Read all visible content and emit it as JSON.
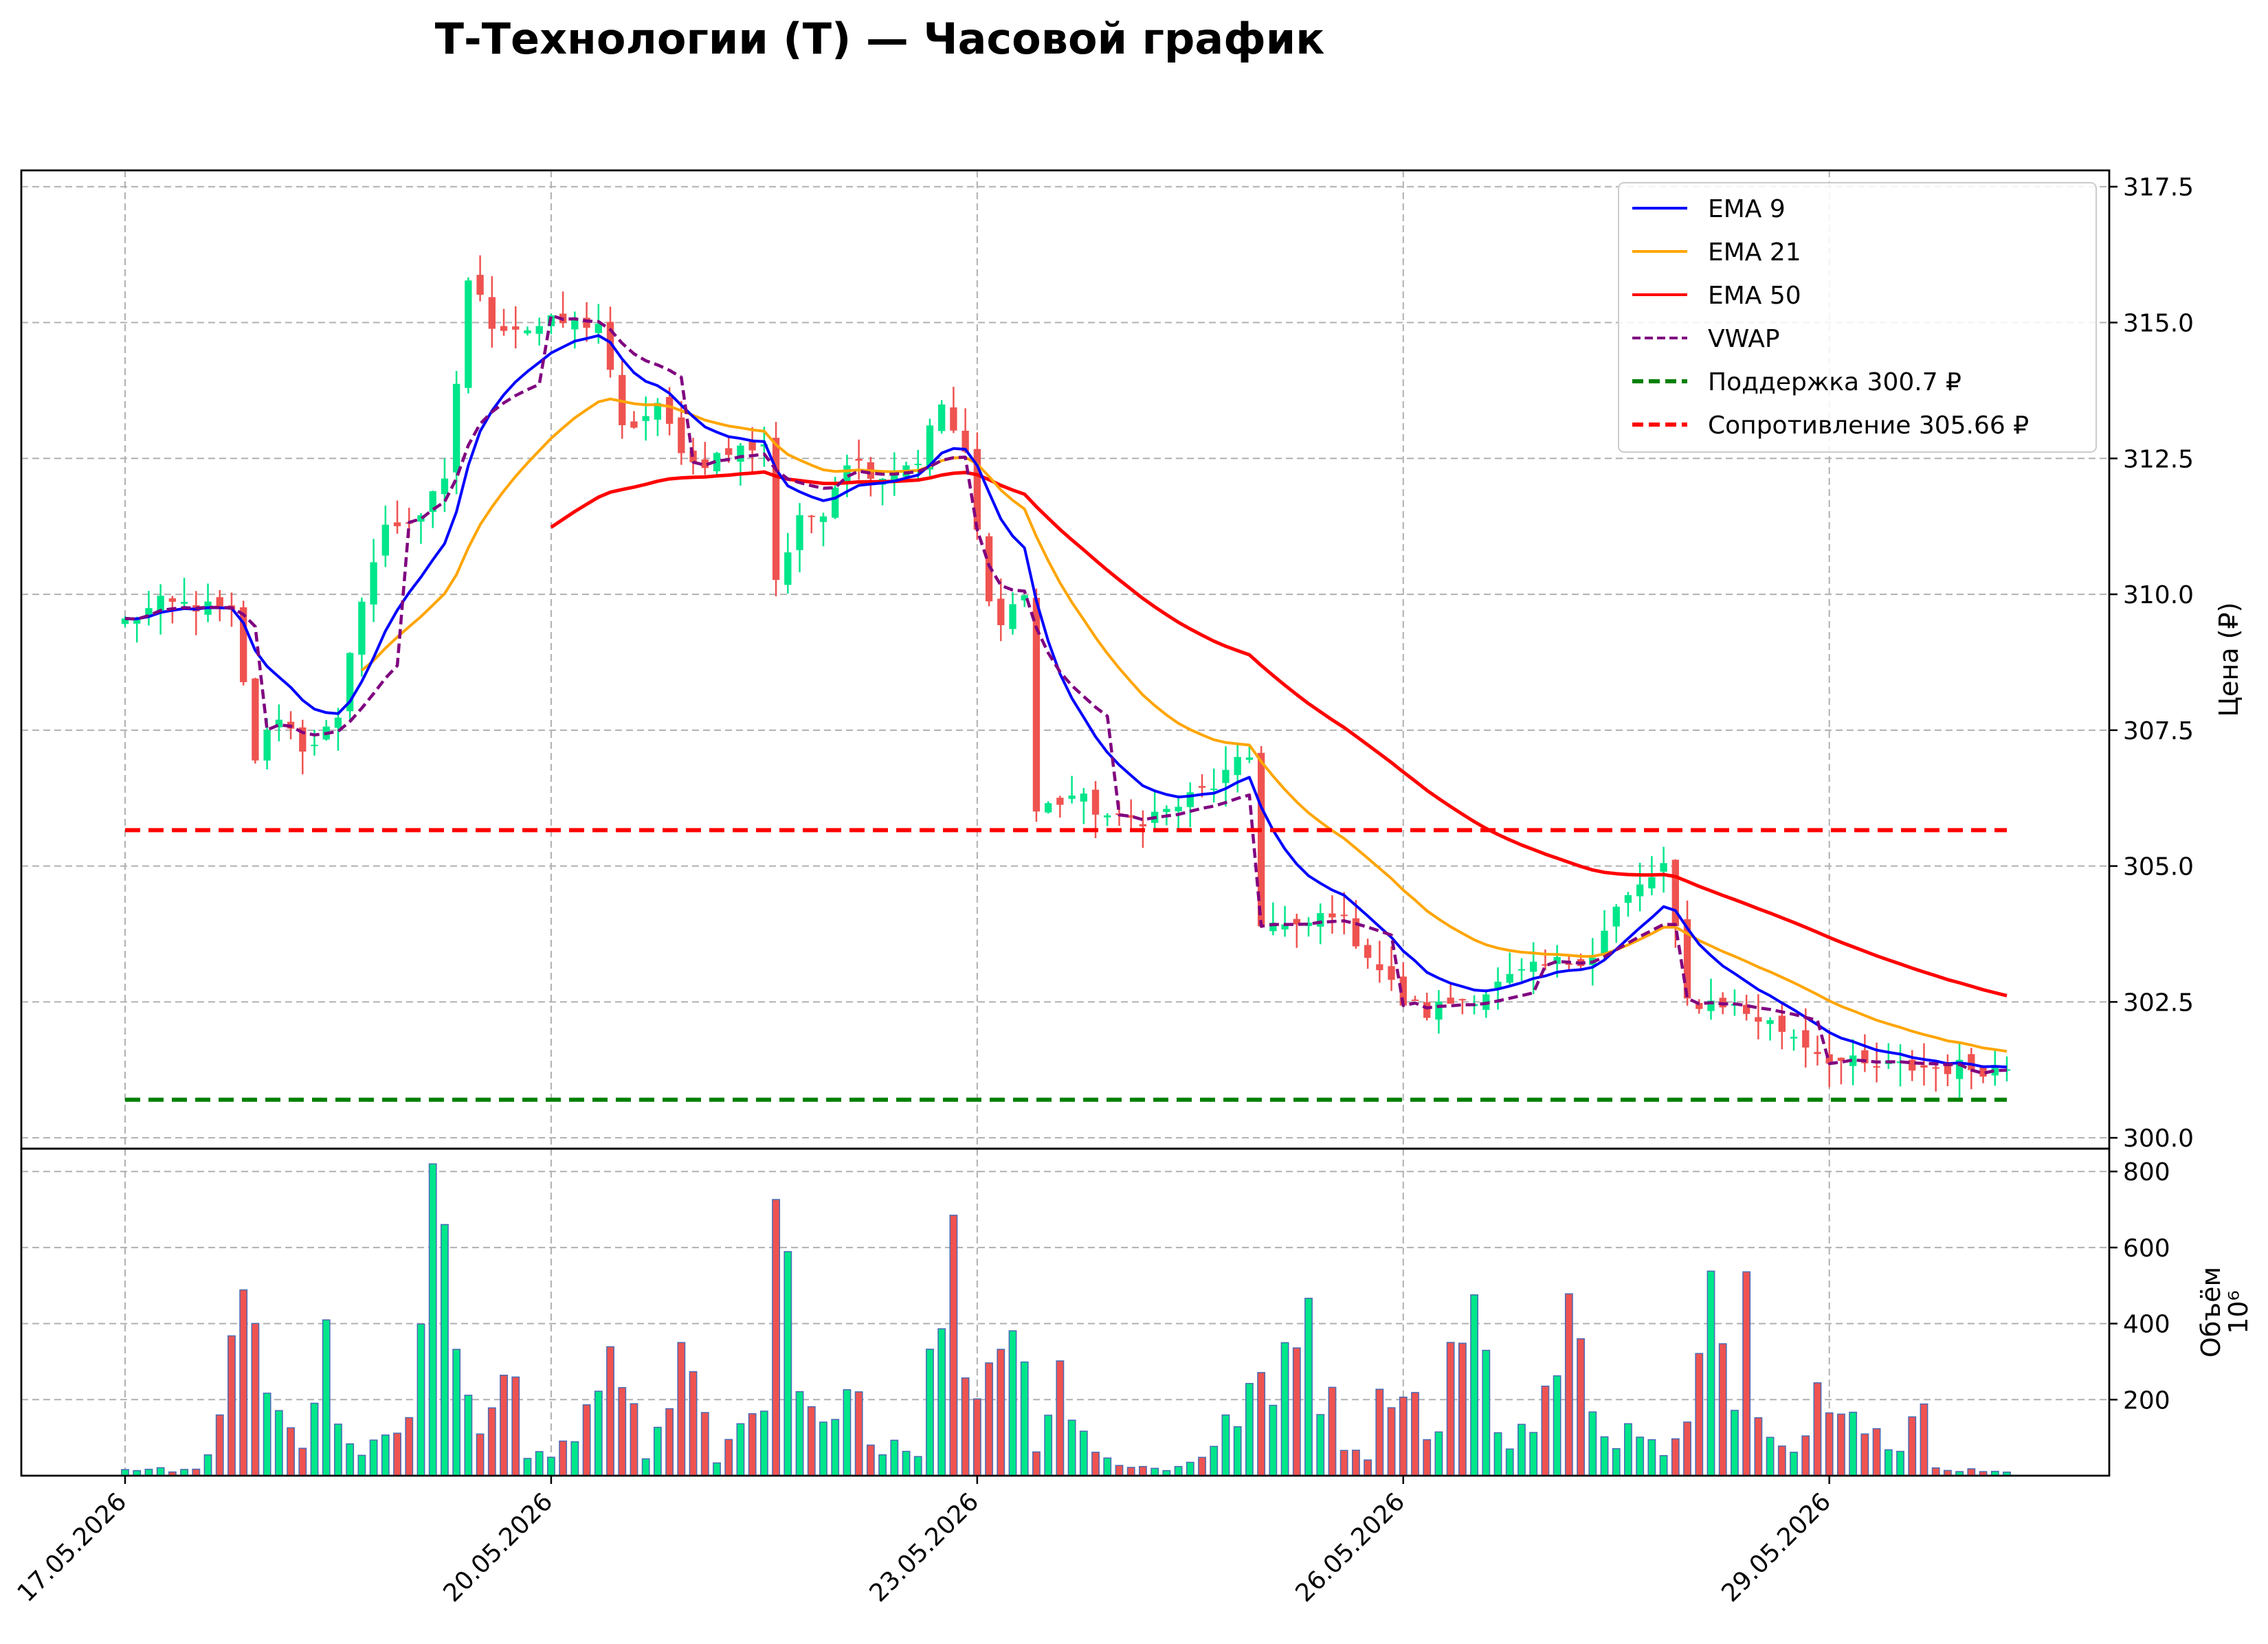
{
  "chart_data": {
    "type": "candlestick",
    "title": "Т-Технологии (T) — Часовой график",
    "ylabel_price": "Цена (₽)",
    "ylabel_volume": "Объём",
    "volume_multiplier": "10⁶",
    "x_tick_labels": [
      "17.05.2026",
      "20.05.2026",
      "23.05.2026",
      "26.05.2026",
      "29.05.2026"
    ],
    "price_ylim": [
      299.8,
      317.8
    ],
    "price_ticks": [
      300.0,
      302.5,
      305.0,
      307.5,
      310.0,
      312.5,
      315.0,
      317.5
    ],
    "volume_ylim": [
      0,
      860
    ],
    "volume_ticks": [
      200,
      400,
      600,
      800
    ],
    "grid": true,
    "legend_position": "top-right",
    "colors": {
      "bull": "#00E68A",
      "bear": "#EF5350",
      "ema9": "#0000FF",
      "ema21": "#FFA500",
      "ema50": "#FF0000",
      "vwap": "#800080",
      "support": "#008000",
      "resistance": "#FF0000"
    },
    "support": 300.7,
    "resistance": 305.66,
    "legend": [
      {
        "label": "EMA 9",
        "key": "ema9",
        "dash": false
      },
      {
        "label": "EMA 21",
        "key": "ema21",
        "dash": false
      },
      {
        "label": "EMA 50",
        "key": "ema50",
        "dash": false
      },
      {
        "label": "VWAP",
        "key": "vwap",
        "dash": true
      },
      {
        "label": "Поддержка 300.7 ₽",
        "key": "support",
        "dash": true
      },
      {
        "label": "Сопротивление 305.66 ₽",
        "key": "resistance",
        "dash": true
      }
    ],
    "price_keypoints": [
      [
        0,
        309.5
      ],
      [
        3,
        309.8
      ],
      [
        6,
        309.8
      ],
      [
        9,
        309.6
      ],
      [
        11,
        307.0
      ],
      [
        13,
        307.8
      ],
      [
        15,
        307.2
      ],
      [
        18,
        307.6
      ],
      [
        20,
        310.0
      ],
      [
        22,
        311.2
      ],
      [
        25,
        311.5
      ],
      [
        27,
        312.0
      ],
      [
        29,
        315.8
      ],
      [
        31,
        315.0
      ],
      [
        34,
        314.9
      ],
      [
        37,
        315.0
      ],
      [
        40,
        315.0
      ],
      [
        42,
        313.0
      ],
      [
        45,
        313.4
      ],
      [
        48,
        312.4
      ],
      [
        51,
        312.6
      ],
      [
        54,
        312.8
      ],
      [
        55,
        310.3
      ],
      [
        57,
        311.3
      ],
      [
        59,
        311.6
      ],
      [
        61,
        312.5
      ],
      [
        64,
        312.2
      ],
      [
        67,
        312.5
      ],
      [
        69,
        313.5
      ],
      [
        71,
        312.5
      ],
      [
        73,
        309.8
      ],
      [
        74,
        309.6
      ],
      [
        76,
        310.0
      ],
      [
        77,
        306.0
      ],
      [
        80,
        306.3
      ],
      [
        84,
        305.8
      ],
      [
        88,
        306.0
      ],
      [
        92,
        306.5
      ],
      [
        95,
        307.0
      ],
      [
        96,
        304.0
      ],
      [
        99,
        303.8
      ],
      [
        102,
        304.2
      ],
      [
        105,
        303.4
      ],
      [
        108,
        302.5
      ],
      [
        110,
        302.3
      ],
      [
        112,
        302.5
      ],
      [
        115,
        302.7
      ],
      [
        118,
        303.0
      ],
      [
        121,
        303.2
      ],
      [
        124,
        303.4
      ],
      [
        126,
        304.2
      ],
      [
        129,
        304.8
      ],
      [
        130,
        305.0
      ],
      [
        132,
        302.5
      ],
      [
        135,
        302.5
      ],
      [
        138,
        302.2
      ],
      [
        141,
        301.9
      ],
      [
        143,
        301.6
      ],
      [
        145,
        301.4
      ],
      [
        147,
        301.3
      ],
      [
        150,
        301.3
      ]
    ],
    "volume_keypoints": [
      [
        0,
        20
      ],
      [
        6,
        15
      ],
      [
        8,
        160
      ],
      [
        10,
        450
      ],
      [
        12,
        280
      ],
      [
        15,
        90
      ],
      [
        17,
        360
      ],
      [
        19,
        70
      ],
      [
        21,
        80
      ],
      [
        24,
        140
      ],
      [
        26,
        720
      ],
      [
        28,
        410
      ],
      [
        30,
        180
      ],
      [
        32,
        410
      ],
      [
        34,
        60
      ],
      [
        36,
        60
      ],
      [
        38,
        120
      ],
      [
        40,
        230
      ],
      [
        42,
        330
      ],
      [
        44,
        50
      ],
      [
        46,
        310
      ],
      [
        48,
        260
      ],
      [
        50,
        40
      ],
      [
        52,
        120
      ],
      [
        54,
        160
      ],
      [
        55,
        790
      ],
      [
        57,
        215
      ],
      [
        59,
        120
      ],
      [
        61,
        410
      ],
      [
        63,
        90
      ],
      [
        65,
        100
      ],
      [
        67,
        80
      ],
      [
        69,
        520
      ],
      [
        70,
        600
      ],
      [
        72,
        220
      ],
      [
        74,
        500
      ],
      [
        75,
        460
      ],
      [
        77,
        110
      ],
      [
        79,
        340
      ],
      [
        80,
        200
      ],
      [
        82,
        60
      ],
      [
        85,
        30
      ],
      [
        88,
        15
      ],
      [
        92,
        80
      ],
      [
        95,
        250
      ],
      [
        97,
        200
      ],
      [
        99,
        540
      ],
      [
        100,
        510
      ],
      [
        101,
        280
      ],
      [
        103,
        110
      ],
      [
        105,
        70
      ],
      [
        107,
        320
      ],
      [
        110,
        160
      ],
      [
        111,
        120
      ],
      [
        113,
        520
      ],
      [
        114,
        460
      ],
      [
        115,
        280
      ],
      [
        117,
        80
      ],
      [
        119,
        200
      ],
      [
        121,
        290
      ],
      [
        122,
        420
      ],
      [
        124,
        260
      ],
      [
        126,
        90
      ],
      [
        128,
        150
      ],
      [
        130,
        50
      ],
      [
        132,
        140
      ],
      [
        134,
        460
      ],
      [
        136,
        300
      ],
      [
        137,
        580
      ],
      [
        138,
        240
      ],
      [
        139,
        180
      ],
      [
        141,
        70
      ],
      [
        143,
        230
      ],
      [
        144,
        300
      ],
      [
        146,
        280
      ],
      [
        147,
        180
      ],
      [
        149,
        80
      ],
      [
        150,
        60
      ],
      [
        152,
        210
      ],
      [
        153,
        20
      ],
      [
        158,
        15
      ]
    ]
  }
}
